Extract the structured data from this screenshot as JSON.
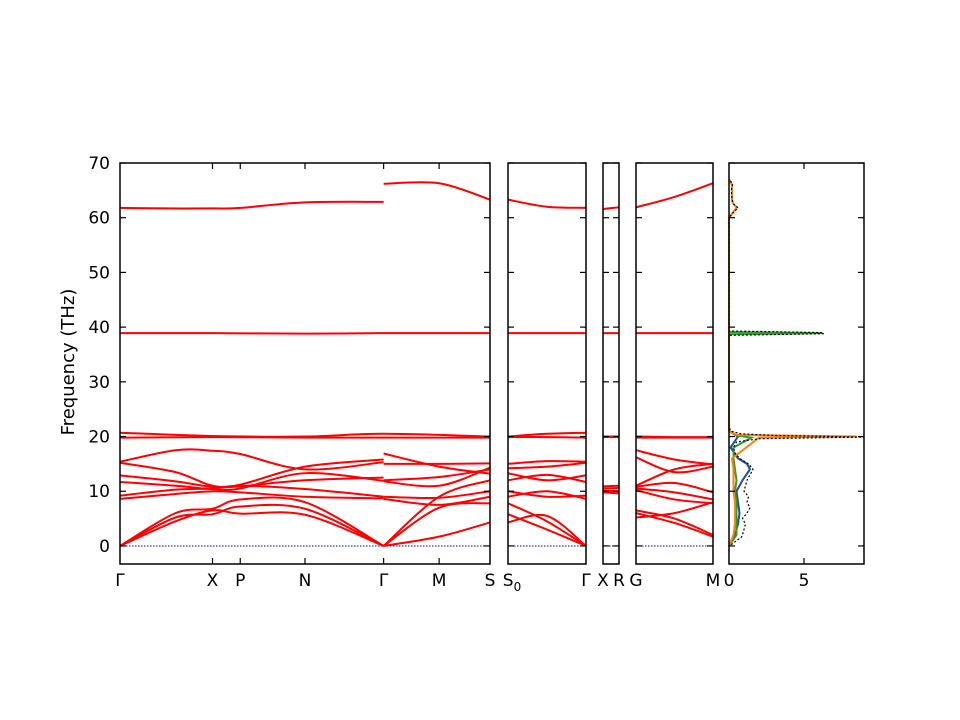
{
  "chart_data": {
    "type": "line",
    "ylabel": "Frequency (THz)",
    "ylim": [
      -3.3,
      70
    ],
    "yticks": [
      0,
      10,
      20,
      30,
      40,
      50,
      60,
      70
    ],
    "colors": {
      "bands": "#ff0000",
      "zero_line": "#0000cc",
      "dos_total": "#000000",
      "dos_parts": [
        "#1f4e9c",
        "#2ca02c",
        "#ff7f0e"
      ]
    },
    "band_panels": [
      {
        "id": "panel1",
        "x_ticks": [
          {
            "label": "Γ",
            "x": 0
          },
          {
            "label": "X",
            "x": 1.0
          },
          {
            "label": "P",
            "x": 1.3
          },
          {
            "label": "N",
            "x": 2.0
          },
          {
            "label": "Γ",
            "x": 2.85
          },
          {
            "label": "M",
            "x": 3.45
          },
          {
            "label": "S",
            "x": 4.0
          }
        ],
        "xlim": [
          0,
          4.0
        ],
        "bands": [
          {
            "x": [
              0,
              0.5,
              1.0,
              1.3,
              2.0,
              2.85
            ],
            "y": [
              61.8,
              61.7,
              61.7,
              61.8,
              62.8,
              62.9
            ]
          },
          {
            "x": [
              2.85,
              3.45,
              4.0
            ],
            "y": [
              66.2,
              66.3,
              63.3
            ]
          },
          {
            "x": [
              0,
              1.0,
              2.0,
              2.85,
              4.0
            ],
            "y": [
              38.9,
              38.9,
              38.8,
              38.9,
              38.9
            ]
          },
          {
            "x": [
              0,
              1.0,
              2.0,
              2.85,
              4.0
            ],
            "y": [
              20.7,
              20.1,
              20.0,
              20.5,
              20.0
            ]
          },
          {
            "x": [
              0,
              1.0,
              2.0,
              2.85,
              4.0
            ],
            "y": [
              19.8,
              19.9,
              19.8,
              19.8,
              19.8
            ]
          },
          {
            "x": [
              0,
              0.6,
              1.0,
              1.3,
              2.0,
              2.85
            ],
            "y": [
              15.4,
              17.5,
              17.4,
              16.8,
              14.0,
              15.3
            ]
          },
          {
            "x": [
              2.85,
              3.45,
              4.0
            ],
            "y": [
              16.9,
              14.5,
              13.2
            ]
          },
          {
            "x": [
              0,
              0.6,
              1.0,
              1.3,
              2.0,
              2.85
            ],
            "y": [
              15.2,
              13.5,
              11.0,
              11.2,
              14.5,
              15.8
            ]
          },
          {
            "x": [
              2.85,
              3.45,
              4.0
            ],
            "y": [
              15.0,
              15.0,
              15.1
            ]
          },
          {
            "x": [
              0,
              0.6,
              1.0,
              1.3,
              2.0,
              2.85
            ],
            "y": [
              12.9,
              11.8,
              10.8,
              10.9,
              12.0,
              12.5
            ]
          },
          {
            "x": [
              2.85,
              3.45,
              4.0
            ],
            "y": [
              12.0,
              12.6,
              14.0
            ]
          },
          {
            "x": [
              0,
              0.6,
              1.0,
              1.3,
              2.0,
              2.85
            ],
            "y": [
              11.7,
              11.0,
              10.4,
              10.5,
              13.3,
              11.9
            ]
          },
          {
            "x": [
              2.85,
              3.45,
              4.0
            ],
            "y": [
              11.8,
              11.0,
              14.3
            ]
          },
          {
            "x": [
              0,
              0.6,
              1.0,
              1.3,
              2.0,
              2.85
            ],
            "y": [
              9.2,
              10.3,
              10.5,
              11.0,
              10.4,
              9.0
            ]
          },
          {
            "x": [
              2.85,
              3.45,
              4.0
            ],
            "y": [
              9.0,
              8.8,
              10.0
            ]
          },
          {
            "x": [
              0,
              0.6,
              1.0,
              1.3,
              2.0,
              2.85
            ],
            "y": [
              8.6,
              9.5,
              10.0,
              9.8,
              9.0,
              8.7
            ]
          },
          {
            "x": [
              2.85,
              3.45,
              4.0
            ],
            "y": [
              8.6,
              7.5,
              9.0
            ]
          },
          {
            "x": [
              0,
              0.6,
              1.0,
              1.3,
              2.0,
              2.85
            ],
            "y": [
              0,
              6.0,
              6.8,
              8.5,
              8.0,
              0
            ]
          },
          {
            "x": [
              2.85,
              3.45,
              4.0
            ],
            "y": [
              0,
              1.7,
              4.3
            ]
          },
          {
            "x": [
              0,
              0.6,
              1.0,
              1.3,
              2.0,
              2.85
            ],
            "y": [
              0,
              5.2,
              5.8,
              7.2,
              6.8,
              0
            ]
          },
          {
            "x": [
              2.85,
              3.45,
              4.0
            ],
            "y": [
              0,
              7.0,
              7.8
            ]
          },
          {
            "x": [
              0,
              0.6,
              1.0,
              1.3,
              2.0,
              2.85
            ],
            "y": [
              0,
              4.5,
              6.5,
              5.9,
              5.7,
              0
            ]
          },
          {
            "x": [
              2.85,
              3.45,
              4.0
            ],
            "y": [
              0,
              9.0,
              12.0
            ]
          }
        ]
      },
      {
        "id": "panel2",
        "x_ticks": [
          {
            "label": "S0",
            "x": 0
          },
          {
            "label": "Γ",
            "x": 1.0
          }
        ],
        "xlim": [
          0,
          1.0
        ],
        "bands": [
          {
            "x": [
              0,
              0.5,
              1.0
            ],
            "y": [
              63.3,
              62.0,
              61.8
            ]
          },
          {
            "x": [
              0,
              1.0
            ],
            "y": [
              38.9,
              38.9
            ]
          },
          {
            "x": [
              0,
              0.5,
              1.0
            ],
            "y": [
              20.0,
              20.5,
              20.7
            ]
          },
          {
            "x": [
              0,
              0.5,
              1.0
            ],
            "y": [
              19.9,
              19.9,
              19.8
            ]
          },
          {
            "x": [
              0,
              0.5,
              1.0
            ],
            "y": [
              15.0,
              15.5,
              15.4
            ]
          },
          {
            "x": [
              0,
              0.5,
              1.0
            ],
            "y": [
              14.2,
              14.5,
              15.2
            ]
          },
          {
            "x": [
              0,
              0.5,
              1.0
            ],
            "y": [
              13.3,
              12.0,
              12.9
            ]
          },
          {
            "x": [
              0,
              0.5,
              1.0
            ],
            "y": [
              12.0,
              13.0,
              11.7
            ]
          },
          {
            "x": [
              0,
              0.5,
              1.0
            ],
            "y": [
              10.0,
              9.0,
              9.2
            ]
          },
          {
            "x": [
              0,
              0.5,
              1.0
            ],
            "y": [
              9.0,
              10.0,
              8.6
            ]
          },
          {
            "x": [
              0,
              0.5,
              1.0
            ],
            "y": [
              7.8,
              4.5,
              0
            ]
          },
          {
            "x": [
              0,
              0.5,
              1.0
            ],
            "y": [
              4.3,
              5.5,
              0
            ]
          },
          {
            "x": [
              0,
              0.5,
              1.0
            ],
            "y": [
              5.8,
              3.0,
              0
            ]
          }
        ]
      },
      {
        "id": "panel3",
        "x_ticks": [
          {
            "label": "X",
            "x": 0
          },
          {
            "label": "R",
            "x": 1.0
          }
        ],
        "xlim": [
          0,
          1.0
        ],
        "bands": [
          {
            "x": [
              0,
              1.0
            ],
            "y": [
              61.6,
              61.9
            ]
          },
          {
            "x": [
              0,
              1.0
            ],
            "y": [
              38.9,
              38.9
            ]
          },
          {
            "x": [
              0,
              1.0
            ],
            "y": [
              20.0,
              20.0
            ]
          },
          {
            "x": [
              0,
              1.0
            ],
            "y": [
              19.9,
              19.9
            ]
          },
          {
            "x": [
              0,
              1.0
            ],
            "y": [
              10.9,
              11.0
            ]
          },
          {
            "x": [
              0,
              1.0
            ],
            "y": [
              10.5,
              10.6
            ]
          },
          {
            "x": [
              0,
              1.0
            ],
            "y": [
              10.1,
              10.0
            ]
          },
          {
            "x": [
              0,
              1.0
            ],
            "y": [
              9.8,
              9.6
            ]
          }
        ]
      },
      {
        "id": "panel4",
        "x_ticks": [
          {
            "label": "G",
            "x": 0
          },
          {
            "label": "M",
            "x": 1.0
          }
        ],
        "xlim": [
          0,
          1.0
        ],
        "bands": [
          {
            "x": [
              0,
              0.5,
              1.0
            ],
            "y": [
              61.9,
              63.8,
              66.3
            ]
          },
          {
            "x": [
              0,
              1.0
            ],
            "y": [
              38.9,
              38.9
            ]
          },
          {
            "x": [
              0,
              0.5,
              1.0
            ],
            "y": [
              20.0,
              19.9,
              19.9
            ]
          },
          {
            "x": [
              0,
              0.5,
              1.0
            ],
            "y": [
              19.8,
              19.8,
              19.8
            ]
          },
          {
            "x": [
              0,
              0.5,
              1.0
            ],
            "y": [
              17.5,
              15.8,
              14.9
            ]
          },
          {
            "x": [
              0,
              0.5,
              1.0
            ],
            "y": [
              16.2,
              13.5,
              14.5
            ]
          },
          {
            "x": [
              0,
              0.5,
              1.0
            ],
            "y": [
              11.0,
              14.0,
              15.0
            ]
          },
          {
            "x": [
              0,
              0.5,
              1.0
            ],
            "y": [
              10.8,
              11.5,
              9.8
            ]
          },
          {
            "x": [
              0,
              0.5,
              1.0
            ],
            "y": [
              10.5,
              9.8,
              8.5
            ]
          },
          {
            "x": [
              0,
              0.5,
              1.0
            ],
            "y": [
              10.2,
              8.5,
              7.8
            ]
          },
          {
            "x": [
              0,
              0.5,
              1.0
            ],
            "y": [
              6.5,
              5.0,
              2.0
            ]
          },
          {
            "x": [
              0,
              0.5,
              1.0
            ],
            "y": [
              6.0,
              4.2,
              1.7
            ]
          },
          {
            "x": [
              0,
              0.5,
              1.0
            ],
            "y": [
              5.2,
              6.0,
              8.0
            ]
          }
        ]
      }
    ],
    "dos_panel": {
      "xlim": [
        0,
        9
      ],
      "xticks": [
        0,
        5
      ],
      "total": [
        [
          -1,
          0
        ],
        [
          0,
          0
        ],
        [
          0.5,
          0.3
        ],
        [
          1,
          0.5
        ],
        [
          1.5,
          0.8
        ],
        [
          2,
          0.9
        ],
        [
          3,
          1.0
        ],
        [
          4,
          1.1
        ],
        [
          5,
          0.9
        ],
        [
          6,
          1.2
        ],
        [
          7,
          1.4
        ],
        [
          8,
          1.2
        ],
        [
          9,
          1.3
        ],
        [
          10,
          1.0
        ],
        [
          11,
          1.1
        ],
        [
          12,
          1.2
        ],
        [
          13,
          1.4
        ],
        [
          14,
          1.6
        ],
        [
          15,
          1.3
        ],
        [
          16,
          0.7
        ],
        [
          17,
          0.4
        ],
        [
          18,
          0.3
        ],
        [
          19,
          0.5
        ],
        [
          19.6,
          2.0
        ],
        [
          19.9,
          9
        ],
        [
          20.2,
          3.0
        ],
        [
          20.5,
          0.8
        ],
        [
          21,
          0.1
        ],
        [
          22,
          0
        ],
        [
          38.5,
          0
        ],
        [
          38.8,
          6.3
        ],
        [
          39.0,
          6.3
        ],
        [
          39.3,
          0
        ],
        [
          60,
          0
        ],
        [
          61,
          0.3
        ],
        [
          61.8,
          0.6
        ],
        [
          62.5,
          0.3
        ],
        [
          63.5,
          0.2
        ],
        [
          65,
          0.15
        ],
        [
          66.2,
          0.25
        ],
        [
          67,
          0
        ]
      ],
      "parts": [
        [
          [
            0,
            0
          ],
          [
            2,
            0.4
          ],
          [
            4,
            0.6
          ],
          [
            6,
            0.7
          ],
          [
            8,
            0.6
          ],
          [
            10,
            0.5
          ],
          [
            12,
            0.9
          ],
          [
            14,
            1.4
          ],
          [
            15,
            1.2
          ],
          [
            16,
            0.6
          ],
          [
            18,
            0.1
          ],
          [
            20,
            0.6
          ],
          [
            21,
            0
          ]
        ],
        [
          [
            0,
            0
          ],
          [
            2,
            0.5
          ],
          [
            4,
            0.5
          ],
          [
            6,
            0.5
          ],
          [
            8,
            0.5
          ],
          [
            10,
            0.4
          ],
          [
            12,
            0.5
          ],
          [
            14,
            0.4
          ],
          [
            16,
            0.3
          ],
          [
            18,
            0.3
          ],
          [
            19.8,
            1.5
          ],
          [
            20.2,
            0.5
          ],
          [
            21,
            0
          ],
          [
            38.7,
            0
          ],
          [
            38.9,
            6.2
          ],
          [
            39.1,
            0
          ]
        ],
        [
          [
            0,
            0
          ],
          [
            2,
            0.3
          ],
          [
            4,
            0.4
          ],
          [
            6,
            0.4
          ],
          [
            8,
            0.4
          ],
          [
            10,
            0.3
          ],
          [
            12,
            0.3
          ],
          [
            14,
            0.3
          ],
          [
            16,
            0.2
          ],
          [
            19.8,
            2.0
          ],
          [
            20,
            8.5
          ],
          [
            20.3,
            0.5
          ],
          [
            21,
            0
          ],
          [
            60,
            0
          ],
          [
            61.8,
            0.5
          ],
          [
            63,
            0.2
          ],
          [
            66,
            0.2
          ],
          [
            67,
            0
          ]
        ]
      ]
    }
  }
}
